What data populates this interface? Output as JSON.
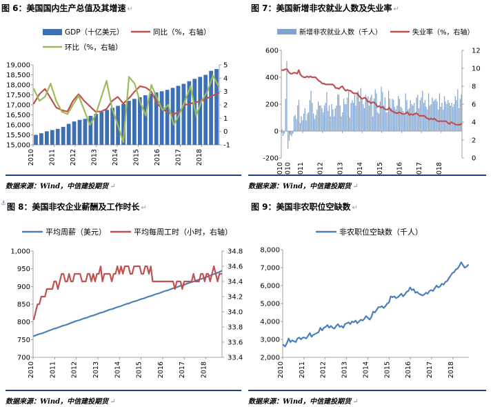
{
  "panels": [
    {
      "title": "图 6：美国国内生产总值及其增速",
      "source": "数据来源：Wind，中信建投期货",
      "chart_data": {
        "type": "bar",
        "x_ticks": [
          "2010",
          "2011",
          "2012",
          "2013",
          "2014",
          "2015",
          "2016",
          "2017",
          "2018"
        ],
        "ylim": [
          15000,
          19000
        ],
        "y_ticks": [
          "15,000",
          "15,500",
          "16,000",
          "16,500",
          "17,000",
          "17,500",
          "18,000",
          "18,500",
          "19,000"
        ],
        "y2lim": [
          -1,
          5
        ],
        "y2_ticks": [
          "-1",
          "0",
          "1",
          "2",
          "3",
          "4",
          "5"
        ],
        "legend_position": "top",
        "x_start": 2010.0,
        "x_step": 0.25,
        "series": [
          {
            "name": "GDP（十亿美元）",
            "kind": "bar",
            "axis": "left",
            "color": "#3d6fb3",
            "values": [
              15500,
              15580,
              15680,
              15740,
              15800,
              15900,
              16050,
              16170,
              16250,
              16300,
              16450,
              16550,
              16650,
              16750,
              16850,
              16950,
              17050,
              17200,
              17300,
              17380,
              17480,
              17560,
              17620,
              17680,
              17750,
              17850,
              17950,
              18050,
              18180,
              18300,
              18400,
              18500,
              18700,
              18790
            ]
          },
          {
            "name": "同比（%，右轴）",
            "kind": "line",
            "axis": "right",
            "color": "#c0504d",
            "values": [
              2.1,
              2.8,
              3.2,
              2.5,
              1.8,
              1.6,
              1.5,
              2.3,
              2.8,
              2.3,
              1.9,
              1.5,
              1.5,
              1.7,
              2.3,
              2.6,
              2.1,
              2.5,
              3.0,
              3.4,
              3.3,
              3.0,
              2.1,
              1.7,
              1.4,
              1.3,
              1.5,
              2.0,
              2.1,
              2.2,
              2.3,
              2.5,
              2.7,
              2.9
            ]
          },
          {
            "name": "环比（%，右轴）",
            "kind": "line",
            "axis": "right",
            "color": "#9bbb59",
            "values": [
              3.2,
              2.3,
              2.6,
              3.6,
              2.3,
              1.5,
              1.3,
              2.0,
              2.7,
              1.6,
              0.5,
              1.2,
              2.5,
              3.8,
              1.7,
              0.5,
              -0.8,
              4.1,
              3.6,
              2.2,
              1.2,
              3.5,
              2.5,
              1.6,
              2.0,
              0.5,
              1.3,
              2.3,
              3.4,
              1.2,
              2.3,
              3.0,
              4.2,
              3.4
            ]
          }
        ]
      }
    },
    {
      "title": "图 7：美国新增非农就业人数及失业率",
      "source": "数据来源：Wind，中信建投期货",
      "chart_data": {
        "type": "bar",
        "x_ticks": [
          "2010",
          "2010",
          "2011",
          "2012",
          "2013",
          "2014",
          "2015",
          "2016",
          "2017",
          "2018"
        ],
        "ylim": [
          -200,
          600
        ],
        "y_ticks": [
          "-200",
          "0",
          "200",
          "400",
          "600"
        ],
        "y2lim": [
          0,
          12
        ],
        "y2_ticks": [
          "0",
          "2",
          "4",
          "6",
          "8",
          "10",
          "12"
        ],
        "legend_position": "top",
        "x_start": 2010.0,
        "x_step": 0.0833,
        "series": [
          {
            "name": "新增非农就业人数（千人）",
            "kind": "bar",
            "axis": "left",
            "color": "#7ea3d1",
            "values": [
              14,
              -36,
              -19,
              240,
              520,
              -130,
              -70,
              -30,
              -40,
              -20,
              110,
              120,
              90,
              190,
              230,
              60,
              110,
              80,
              130,
              170,
              80,
              130,
              140,
              230,
              300,
              210,
              130,
              90,
              120,
              160,
              220,
              190,
              190,
              170,
              140,
              190,
              210,
              290,
              150,
              190,
              110,
              200,
              160,
              110,
              170,
              190,
              270,
              270,
              190,
              110,
              140,
              240,
              200,
              200,
              250,
              290,
              100,
              210,
              230,
              210,
              270,
              190,
              290,
              300,
              220,
              320,
              240,
              200,
              170,
              270,
              230,
              260,
              190,
              250,
              270,
              110,
              240,
              310,
              280,
              140,
              130,
              220,
              330,
              290,
              190,
              250,
              140,
              140,
              300,
              240,
              170,
              240,
              230,
              180,
              160,
              190,
              260,
              240,
              180,
              170,
              150,
              120,
              280,
              230,
              160,
              170,
              230,
              200,
              190,
              210,
              130,
              250,
              270,
              170,
              230,
              250,
              300,
              210,
              230,
              180,
              160,
              280,
              190,
              200,
              250,
              220,
              230,
              240,
              220,
              160,
              280,
              180,
              210,
              160,
              260,
              220,
              200,
              230,
              210,
              190,
              210,
              180,
              200,
              260,
              230,
              310,
              170,
              240,
              270
            ]
          },
          {
            "name": "失业率（%，右轴）",
            "kind": "line",
            "axis": "right",
            "color": "#c0504d",
            "values": [
              9.8,
              9.8,
              9.9,
              9.9,
              9.6,
              9.4,
              9.4,
              9.5,
              9.5,
              9.4,
              9.8,
              9.3,
              9.1,
              9.0,
              9.0,
              9.1,
              9.0,
              9.1,
              9.0,
              9.0,
              9.0,
              8.8,
              8.6,
              8.5,
              8.3,
              8.3,
              8.2,
              8.2,
              8.2,
              8.2,
              8.2,
              8.1,
              7.8,
              7.8,
              7.7,
              7.9,
              8.0,
              7.7,
              7.5,
              7.6,
              7.5,
              7.5,
              7.3,
              7.2,
              7.2,
              7.2,
              6.9,
              6.7,
              6.6,
              6.7,
              6.7,
              6.3,
              6.3,
              6.1,
              6.2,
              6.2,
              6.0,
              5.7,
              5.8,
              5.6,
              5.7,
              5.5,
              5.4,
              5.4,
              5.6,
              5.3,
              5.2,
              5.1,
              5.0,
              5.0,
              5.1,
              5.0,
              4.9,
              4.9,
              5.0,
              5.1,
              4.8,
              4.9,
              4.8,
              4.9,
              5.0,
              4.9,
              4.7,
              4.7,
              4.7,
              4.7,
              4.5,
              4.4,
              4.3,
              4.4,
              4.3,
              4.4,
              4.2,
              4.1,
              4.1,
              4.1,
              4.1,
              4.1,
              4.1,
              3.9,
              3.8,
              4.0,
              3.9,
              3.8,
              3.7,
              3.7,
              3.7,
              3.8
            ]
          }
        ]
      }
    },
    {
      "title": "图 8：美国非农企业薪酬及工作时长",
      "source": "数据来源：Wind，中信建投期货",
      "chart_data": {
        "type": "line",
        "x_ticks": [
          "2010",
          "2011",
          "2012",
          "2013",
          "2014",
          "2015",
          "2016",
          "2017",
          "2018"
        ],
        "ylim": [
          700,
          1000
        ],
        "y_ticks": [
          "700",
          "750",
          "800",
          "850",
          "900",
          "950",
          "1,000"
        ],
        "y2lim": [
          33.4,
          34.8
        ],
        "y2_ticks": [
          "33.4",
          "33.6",
          "33.8",
          "34.0",
          "34.2",
          "34.4",
          "34.6",
          "34.8"
        ],
        "legend_position": "top",
        "x_start": 2010.0,
        "x_step": 0.0833,
        "series": [
          {
            "name": "平均周薪（美元）",
            "kind": "line",
            "axis": "left",
            "color": "#4a7ebb",
            "values": [
              760,
              762,
              764,
              766,
              767,
              769,
              771,
              773,
              775,
              777,
              779,
              781,
              782,
              784,
              786,
              788,
              790,
              791,
              793,
              795,
              797,
              799,
              801,
              803,
              804,
              806,
              808,
              810,
              811,
              813,
              815,
              817,
              818,
              820,
              822,
              824,
              826,
              827,
              829,
              831,
              833,
              835,
              836,
              838,
              840,
              842,
              843,
              845,
              847,
              849,
              851,
              852,
              854,
              856,
              858,
              859,
              861,
              863,
              865,
              866,
              868,
              870,
              872,
              873,
              875,
              877,
              879,
              880,
              882,
              884,
              886,
              888,
              889,
              891,
              893,
              895,
              896,
              898,
              900,
              902,
              903,
              905,
              907,
              909,
              911,
              912,
              914,
              916,
              918,
              920,
              921,
              923,
              925,
              927,
              929,
              931,
              933,
              935,
              937,
              939,
              941,
              944
            ]
          },
          {
            "name": "平均每周工时（小时，右轴）",
            "kind": "line",
            "axis": "right",
            "color": "#c0504d",
            "values": [
              33.9,
              34.0,
              34.1,
              34.1,
              34.2,
              34.2,
              34.2,
              34.3,
              34.3,
              34.3,
              34.3,
              34.4,
              34.4,
              34.3,
              34.4,
              34.5,
              34.5,
              34.4,
              34.4,
              34.5,
              34.4,
              34.4,
              34.5,
              34.5,
              34.5,
              34.5,
              34.4,
              34.4,
              34.4,
              34.5,
              34.5,
              34.4,
              34.5,
              34.4,
              34.5,
              34.5,
              34.6,
              34.4,
              34.5,
              34.5,
              34.5,
              34.5,
              34.4,
              34.5,
              34.5,
              34.6,
              34.5,
              34.6,
              34.5,
              34.6,
              34.6,
              34.6,
              34.5,
              34.5,
              34.6,
              34.6,
              34.6,
              34.6,
              34.5,
              34.5,
              34.6,
              34.6,
              34.5,
              34.6,
              34.4,
              34.4,
              34.4,
              34.4,
              34.4,
              34.4,
              34.4,
              34.4,
              34.4,
              34.4,
              34.4,
              34.4,
              34.3,
              34.4,
              34.4,
              34.4,
              34.3,
              34.4,
              34.4,
              34.4,
              34.4,
              34.4,
              34.5,
              34.4,
              34.4,
              34.4,
              34.5,
              34.5,
              34.4,
              34.5,
              34.5,
              34.4,
              34.5,
              34.6,
              34.5,
              34.4,
              34.5,
              34.5
            ]
          }
        ]
      }
    },
    {
      "title": "图 9：美国非农职位空缺数",
      "source": "数据来源：Wind，中信建投期货",
      "chart_data": {
        "type": "line",
        "x_ticks": [
          "2010",
          "2011",
          "2012",
          "2013",
          "2014",
          "2015",
          "2016",
          "2017",
          "2018"
        ],
        "ylim": [
          2000,
          8000
        ],
        "y_ticks": [
          "2,000",
          "3,000",
          "4,000",
          "5,000",
          "6,000",
          "7,000",
          "8,000"
        ],
        "legend_position": "top",
        "x_start": 2010.0,
        "x_step": 0.0833,
        "series": [
          {
            "name": "非农职位空缺数（千人）",
            "kind": "line",
            "axis": "left",
            "color": "#4a7ebb",
            "values": [
              2700,
              2600,
              2800,
              3050,
              2850,
              2950,
              2900,
              2850,
              3050,
              3100,
              3000,
              3100,
              3100,
              3050,
              3200,
              3350,
              3150,
              3250,
              3300,
              3350,
              3400,
              3650,
              3500,
              3650,
              3700,
              3800,
              3650,
              3750,
              3650,
              3600,
              3750,
              3850,
              3700,
              3750,
              3650,
              3850,
              3900,
              3950,
              3850,
              4000,
              3950,
              4050,
              3900,
              4000,
              4100,
              4050,
              4150,
              4300,
              4200,
              4100,
              4250,
              4550,
              4500,
              4650,
              4800,
              4800,
              4850,
              4750,
              4850,
              5000,
              5050,
              5400,
              5350,
              5400,
              5300,
              5350,
              5450,
              5550,
              5400,
              5500,
              5650,
              5700,
              5900,
              5750,
              5800,
              5600,
              5650,
              5550,
              5500,
              5450,
              5500,
              5600,
              5550,
              5700,
              5750,
              5700,
              5850,
              6000,
              5900,
              5950,
              6100,
              6050,
              6200,
              6250,
              6400,
              6550,
              6700,
              6750,
              6900,
              6950,
              7100,
              7300,
              7150,
              7000,
              7050,
              7150
            ]
          }
        ]
      }
    }
  ]
}
